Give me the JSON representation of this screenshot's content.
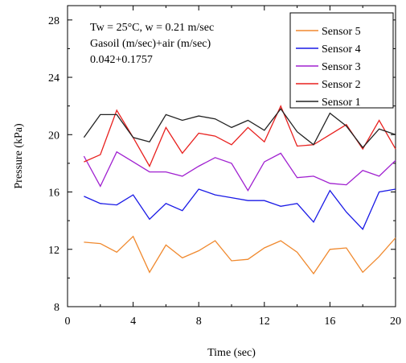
{
  "chart_data": {
    "type": "line",
    "title": "",
    "annotations": [
      "Tw = 25°C, w = 0.21 m/sec",
      "Gasoil (m/sec)+air (m/sec)",
      "0.042+0.1757"
    ],
    "xlabel": "Time (sec)",
    "ylabel": "Pressure (kPa)",
    "xlim": [
      0,
      20
    ],
    "ylim": [
      8,
      29
    ],
    "xticks": [
      0,
      4,
      8,
      12,
      16,
      20
    ],
    "yticks": [
      8,
      12,
      16,
      20,
      24,
      28
    ],
    "grid": false,
    "legend_position": "top-right",
    "x": [
      1,
      2,
      3,
      4,
      5,
      6,
      7,
      8,
      9,
      10,
      11,
      12,
      13,
      14,
      15,
      16,
      17,
      18,
      19,
      20
    ],
    "series": [
      {
        "name": "Sensor 5",
        "color": "#f0892e",
        "values": [
          12.5,
          12.4,
          11.8,
          12.9,
          10.4,
          12.3,
          11.4,
          11.9,
          12.6,
          11.2,
          11.3,
          12.1,
          12.6,
          11.8,
          10.3,
          12.0,
          12.1,
          10.4,
          11.5,
          12.8
        ]
      },
      {
        "name": "Sensor 4",
        "color": "#1a1ae6",
        "values": [
          15.7,
          15.2,
          15.1,
          15.8,
          14.1,
          15.2,
          14.7,
          16.2,
          15.8,
          15.6,
          15.4,
          15.4,
          15.0,
          15.2,
          13.9,
          16.1,
          14.6,
          13.4,
          16.0,
          16.2
        ]
      },
      {
        "name": "Sensor 3",
        "color": "#a020d0",
        "values": [
          18.5,
          16.4,
          18.8,
          18.1,
          17.4,
          17.4,
          17.1,
          17.8,
          18.4,
          18.0,
          16.1,
          18.1,
          18.7,
          17.0,
          17.1,
          16.6,
          16.5,
          17.5,
          17.1,
          18.2
        ]
      },
      {
        "name": "Sensor 2",
        "color": "#e8201e",
        "values": [
          18.1,
          18.6,
          21.7,
          19.8,
          17.8,
          20.5,
          18.7,
          20.1,
          19.9,
          19.3,
          20.5,
          19.5,
          22.0,
          19.2,
          19.3,
          20.0,
          20.7,
          19.0,
          21.0,
          19.0
        ]
      },
      {
        "name": "Sensor 1",
        "color": "#222222",
        "values": [
          19.8,
          21.4,
          21.4,
          19.8,
          19.5,
          21.4,
          21.0,
          21.3,
          21.1,
          20.5,
          21.0,
          20.3,
          21.8,
          20.2,
          19.3,
          21.5,
          20.6,
          19.1,
          20.4,
          20.0
        ]
      }
    ]
  }
}
